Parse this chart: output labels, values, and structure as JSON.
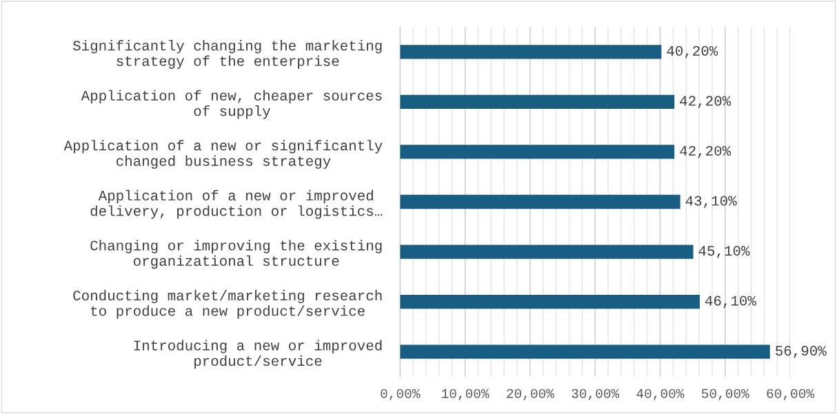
{
  "chart_data": {
    "type": "bar",
    "orientation": "horizontal",
    "categories": [
      "Significantly changing the marketing\nstrategy of the enterprise",
      "Application of new, cheaper sources\nof supply",
      "Application of a new or significantly\nchanged business strategy",
      "Application of a new or improved\ndelivery, production or logistics…",
      "Changing or improving the existing\norganizational structure",
      "Conducting market/marketing research\nto produce a new product/service",
      "Introducing a new or improved\nproduct/service"
    ],
    "values": [
      40.2,
      42.2,
      42.2,
      43.1,
      45.1,
      46.1,
      56.9
    ],
    "value_labels": [
      "40,20%",
      "42,20%",
      "42,20%",
      "43,10%",
      "45,10%",
      "46,10%",
      "56,90%"
    ],
    "color": "#175e82",
    "xlim": [
      0,
      60
    ],
    "xticks": [
      {
        "value": 0,
        "label": "0,00%"
      },
      {
        "value": 2,
        "label": null
      },
      {
        "value": 4,
        "label": null
      },
      {
        "value": 6,
        "label": null
      },
      {
        "value": 8,
        "label": null
      },
      {
        "value": 10,
        "label": "10,00%"
      },
      {
        "value": 12,
        "label": null
      },
      {
        "value": 14,
        "label": null
      },
      {
        "value": 16,
        "label": null
      },
      {
        "value": 18,
        "label": null
      },
      {
        "value": 20,
        "label": "20,00%"
      },
      {
        "value": 22,
        "label": null
      },
      {
        "value": 24,
        "label": null
      },
      {
        "value": 26,
        "label": null
      },
      {
        "value": 28,
        "label": null
      },
      {
        "value": 30,
        "label": "30,00%"
      },
      {
        "value": 32,
        "label": null
      },
      {
        "value": 34,
        "label": null
      },
      {
        "value": 36,
        "label": null
      },
      {
        "value": 38,
        "label": null
      },
      {
        "value": 40,
        "label": "40,00%"
      },
      {
        "value": 42,
        "label": null
      },
      {
        "value": 44,
        "label": null
      },
      {
        "value": 46,
        "label": null
      },
      {
        "value": 48,
        "label": null
      },
      {
        "value": 50,
        "label": "50,00%"
      },
      {
        "value": 52,
        "label": null
      },
      {
        "value": 54,
        "label": null
      },
      {
        "value": 56,
        "label": null
      },
      {
        "value": 58,
        "label": null
      },
      {
        "value": 60,
        "label": "60,00%"
      }
    ],
    "grid": "x"
  }
}
